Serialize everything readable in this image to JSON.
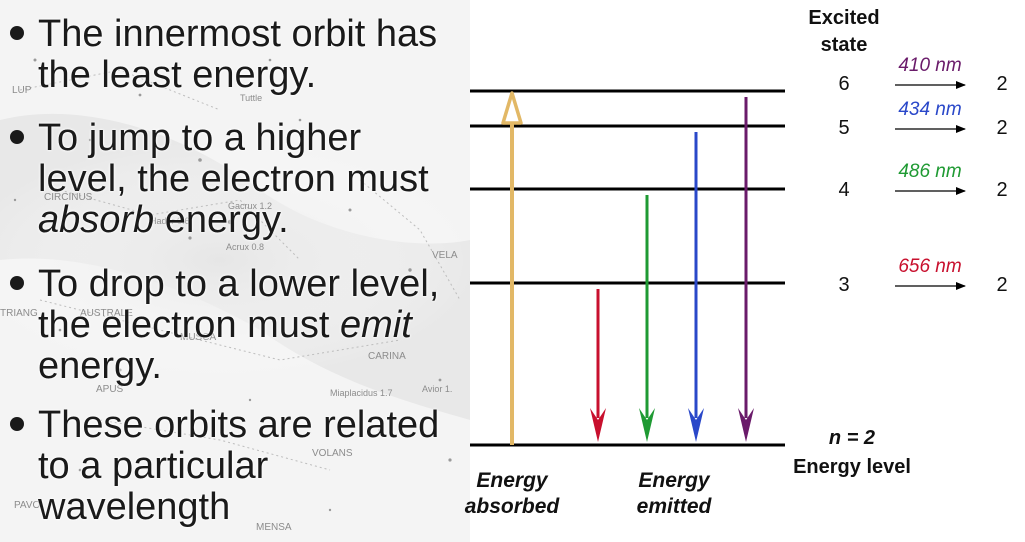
{
  "bullets": [
    {
      "lines": [
        [
          {
            "t": "The innermost orbit has"
          }
        ],
        [
          {
            "t": "the least energy."
          }
        ]
      ]
    },
    {
      "lines": [
        [
          {
            "t": "To jump to a higher"
          }
        ],
        [
          {
            "t": "level, the electron must"
          }
        ],
        [
          {
            "t": "absorb",
            "em": true
          },
          {
            "t": " energy."
          }
        ]
      ]
    },
    {
      "lines": [
        [
          {
            "t": "To drop to a lower level,"
          }
        ],
        [
          {
            "t": "the electron must "
          },
          {
            "t": "emit",
            "em": true
          }
        ],
        [
          {
            "t": "energy."
          }
        ]
      ]
    },
    {
      "lines": [
        [
          {
            "t": "These orbits are related"
          }
        ],
        [
          {
            "t": "to a particular"
          }
        ],
        [
          {
            "t": "wavelength"
          }
        ]
      ]
    }
  ],
  "background_labels": [
    "LUP",
    "Tuttle",
    "CIRCINUS",
    "Gacrux 1.2",
    "Hadar 0.6",
    "Acrux 0.8",
    "VELA",
    "TRIANG",
    "AUSTRALE",
    "MUSCA",
    "CARINA",
    "APUS",
    "Miaplacidus 1.7",
    "Avior 1.",
    "VOLANS",
    "PAVO",
    "MENSA"
  ],
  "diagram": {
    "header": {
      "line1": "Excited",
      "line2": "state"
    },
    "ground_label": {
      "line1": "n = 2",
      "line2": "Energy level"
    },
    "absorbed_label": {
      "line1": "Energy",
      "line2": "absorbed"
    },
    "emitted_label": {
      "line1": "Energy",
      "line2": "emitted"
    },
    "absorbed_color": "#e2b866",
    "levels": [
      {
        "n": "6",
        "wavelength": "410 nm",
        "target": "2",
        "color": "#6a1b6a"
      },
      {
        "n": "5",
        "wavelength": "434 nm",
        "target": "2",
        "color": "#2a48c9"
      },
      {
        "n": "4",
        "wavelength": "486 nm",
        "target": "2",
        "color": "#1f9a33"
      },
      {
        "n": "3",
        "wavelength": "656 nm",
        "target": "2",
        "color": "#c8102e"
      }
    ]
  }
}
